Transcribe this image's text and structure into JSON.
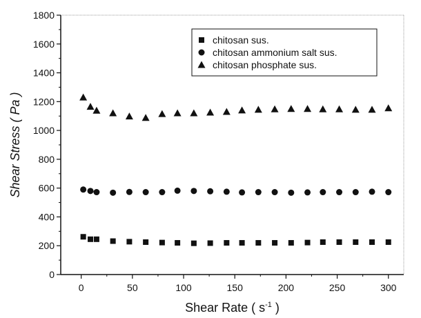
{
  "chart_data": {
    "type": "scatter",
    "title": "",
    "xlabel": "Shear Rate ( s",
    "xlabel_sup": "-1",
    "xlabel_tail": " )",
    "ylabel": "Shear Stress ( Pa )",
    "xlim": [
      -20,
      315
    ],
    "ylim": [
      0,
      1800
    ],
    "x_ticks": [
      0,
      50,
      100,
      150,
      200,
      250,
      300
    ],
    "y_ticks": [
      0,
      200,
      400,
      600,
      800,
      1000,
      1200,
      1400,
      1600,
      1800
    ],
    "grid": false,
    "legend_position": "top-right",
    "series": [
      {
        "name": "chitosan sus.",
        "marker": "square",
        "color": "#111111",
        "points": [
          [
            2,
            262
          ],
          [
            9,
            245
          ],
          [
            15,
            245
          ],
          [
            31,
            232
          ],
          [
            47,
            228
          ],
          [
            63,
            225
          ],
          [
            79,
            222
          ],
          [
            94,
            220
          ],
          [
            110,
            217
          ],
          [
            126,
            218
          ],
          [
            142,
            220
          ],
          [
            157,
            220
          ],
          [
            173,
            220
          ],
          [
            189,
            220
          ],
          [
            205,
            220
          ],
          [
            221,
            222
          ],
          [
            236,
            225
          ],
          [
            252,
            225
          ],
          [
            268,
            225
          ],
          [
            284,
            225
          ],
          [
            300,
            225
          ]
        ]
      },
      {
        "name": "chitosan ammonium salt sus.",
        "marker": "circle",
        "color": "#111111",
        "points": [
          [
            2,
            590
          ],
          [
            9,
            580
          ],
          [
            15,
            572
          ],
          [
            31,
            568
          ],
          [
            47,
            573
          ],
          [
            63,
            572
          ],
          [
            79,
            572
          ],
          [
            94,
            582
          ],
          [
            110,
            580
          ],
          [
            126,
            578
          ],
          [
            142,
            575
          ],
          [
            157,
            570
          ],
          [
            173,
            572
          ],
          [
            189,
            572
          ],
          [
            205,
            568
          ],
          [
            221,
            570
          ],
          [
            236,
            572
          ],
          [
            252,
            572
          ],
          [
            268,
            572
          ],
          [
            284,
            575
          ],
          [
            300,
            572
          ]
        ]
      },
      {
        "name": "chitosan phosphate sus.",
        "marker": "triangle",
        "color": "#111111",
        "points": [
          [
            2,
            1230
          ],
          [
            9,
            1165
          ],
          [
            15,
            1138
          ],
          [
            31,
            1120
          ],
          [
            47,
            1098
          ],
          [
            63,
            1088
          ],
          [
            79,
            1115
          ],
          [
            94,
            1120
          ],
          [
            110,
            1120
          ],
          [
            126,
            1125
          ],
          [
            142,
            1130
          ],
          [
            157,
            1140
          ],
          [
            173,
            1145
          ],
          [
            189,
            1148
          ],
          [
            205,
            1150
          ],
          [
            221,
            1150
          ],
          [
            236,
            1148
          ],
          [
            252,
            1148
          ],
          [
            268,
            1145
          ],
          [
            284,
            1145
          ],
          [
            300,
            1155
          ]
        ]
      }
    ]
  }
}
